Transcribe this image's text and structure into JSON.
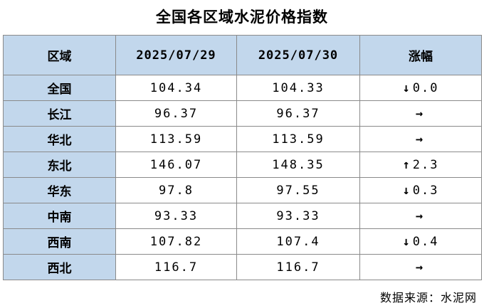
{
  "title": "全国各区域水泥价格指数",
  "headers": {
    "region": "区域",
    "date1": "2025/07/29",
    "date2": "2025/07/30",
    "change": "涨幅"
  },
  "rows": [
    {
      "region": "全国",
      "v1": "104.34",
      "v2": "104.33",
      "arrow": "↓",
      "direction": "down",
      "change": "0.0"
    },
    {
      "region": "长江",
      "v1": "96.37",
      "v2": "96.37",
      "arrow": "→",
      "direction": "flat",
      "change": ""
    },
    {
      "region": "华北",
      "v1": "113.59",
      "v2": "113.59",
      "arrow": "→",
      "direction": "flat",
      "change": ""
    },
    {
      "region": "东北",
      "v1": "146.07",
      "v2": "148.35",
      "arrow": "↑",
      "direction": "up",
      "change": "2.3"
    },
    {
      "region": "华东",
      "v1": "97.8",
      "v2": "97.55",
      "arrow": "↓",
      "direction": "down",
      "change": "0.3"
    },
    {
      "region": "中南",
      "v1": "93.33",
      "v2": "93.33",
      "arrow": "→",
      "direction": "flat",
      "change": ""
    },
    {
      "region": "西南",
      "v1": "107.82",
      "v2": "107.4",
      "arrow": "↓",
      "direction": "down",
      "change": "0.4"
    },
    {
      "region": "西北",
      "v1": "116.7",
      "v2": "116.7",
      "arrow": "→",
      "direction": "flat",
      "change": ""
    }
  ],
  "source": "数据来源：水泥网",
  "colors": {
    "header_bg": "#c2d7ec",
    "up": "#ee1111",
    "down": "#22aa22",
    "flat": "#1a1ad0",
    "border": "#8a8a8a"
  }
}
